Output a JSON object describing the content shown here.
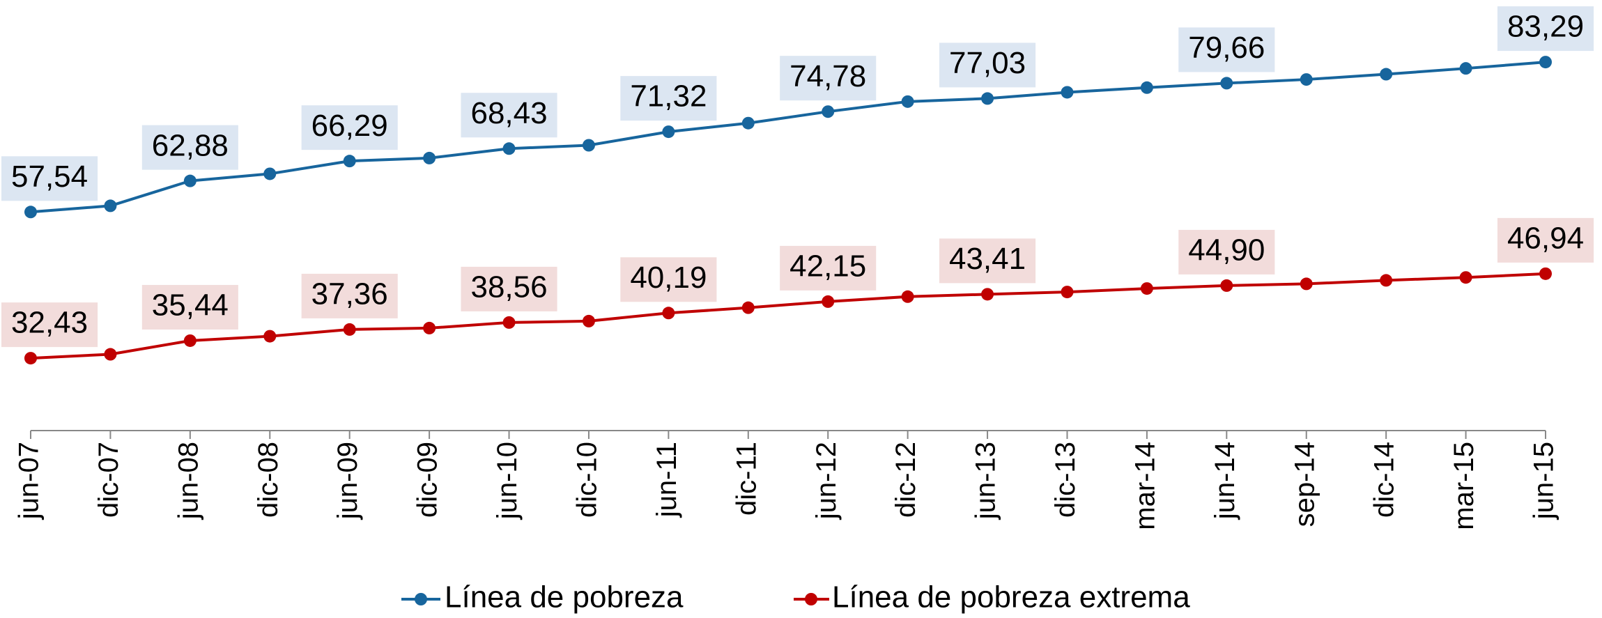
{
  "chart_data": {
    "type": "line",
    "categories": [
      "jun-07",
      "dic-07",
      "jun-08",
      "dic-08",
      "jun-09",
      "dic-09",
      "jun-10",
      "dic-10",
      "jun-11",
      "dic-11",
      "jun-12",
      "dic-12",
      "jun-13",
      "dic-13",
      "mar-14",
      "jun-14",
      "sep-14",
      "dic-14",
      "mar-15",
      "jun-15"
    ],
    "ylim": [
      20,
      90
    ],
    "legend": "bottom",
    "series": [
      {
        "name": "Línea de pobreza",
        "color": "#17659d",
        "label_bg": "#dce6f2",
        "values": [
          57.54,
          58.6,
          62.88,
          64.1,
          66.29,
          66.8,
          68.43,
          69.0,
          71.32,
          72.8,
          74.78,
          76.5,
          77.03,
          78.1,
          78.9,
          79.66,
          80.3,
          81.2,
          82.2,
          83.29
        ],
        "value_labels": [
          "57,54",
          null,
          "62,88",
          null,
          "66,29",
          null,
          "68,43",
          null,
          "71,32",
          null,
          "74,78",
          null,
          "77,03",
          null,
          null,
          "79,66",
          null,
          null,
          null,
          "83,29"
        ]
      },
      {
        "name": "Línea de pobreza extrema",
        "color": "#c00000",
        "label_bg": "#f2dcdb",
        "values": [
          32.43,
          33.1,
          35.44,
          36.2,
          37.36,
          37.6,
          38.56,
          38.8,
          40.19,
          41.1,
          42.15,
          43.0,
          43.41,
          43.8,
          44.4,
          44.9,
          45.2,
          45.8,
          46.3,
          46.94
        ],
        "value_labels": [
          "32,43",
          null,
          "35,44",
          null,
          "37,36",
          null,
          "38,56",
          null,
          "40,19",
          null,
          "42,15",
          null,
          "43,41",
          null,
          null,
          "44,90",
          null,
          null,
          null,
          "46,94"
        ]
      }
    ]
  }
}
